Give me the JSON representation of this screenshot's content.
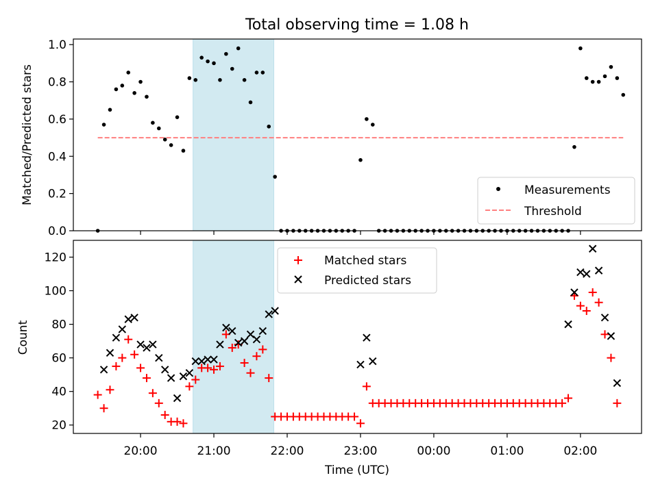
{
  "chart_data": [
    {
      "type": "scatter",
      "title": "Total observing time = 1.08 h",
      "xlabel": "",
      "ylabel": "Matched/Predicted stars",
      "ylim": [
        0,
        1.03
      ],
      "yticks": [
        "0.0",
        "0.2",
        "0.4",
        "0.6",
        "0.8",
        "1.0"
      ],
      "ytick_values": [
        0,
        0.2,
        0.4,
        0.6,
        0.8,
        1.0
      ],
      "highlight": {
        "from": "20:43",
        "to": "21:49",
        "color": "#add8e6"
      },
      "legend_position": "lower-right",
      "series": [
        {
          "name": "Measurements",
          "marker": "dot",
          "color": "#000000",
          "points": [
            [
              "19:25",
              0.0
            ],
            [
              "19:30",
              0.57
            ],
            [
              "19:35",
              0.65
            ],
            [
              "19:40",
              0.76
            ],
            [
              "19:45",
              0.78
            ],
            [
              "19:50",
              0.85
            ],
            [
              "19:55",
              0.74
            ],
            [
              "20:00",
              0.8
            ],
            [
              "20:05",
              0.72
            ],
            [
              "20:10",
              0.58
            ],
            [
              "20:15",
              0.55
            ],
            [
              "20:20",
              0.49
            ],
            [
              "20:25",
              0.46
            ],
            [
              "20:30",
              0.61
            ],
            [
              "20:35",
              0.43
            ],
            [
              "20:40",
              0.82
            ],
            [
              "20:45",
              0.81
            ],
            [
              "20:50",
              0.93
            ],
            [
              "20:55",
              0.91
            ],
            [
              "21:00",
              0.9
            ],
            [
              "21:05",
              0.81
            ],
            [
              "21:10",
              0.95
            ],
            [
              "21:15",
              0.87
            ],
            [
              "21:20",
              0.98
            ],
            [
              "21:25",
              0.81
            ],
            [
              "21:30",
              0.69
            ],
            [
              "21:35",
              0.85
            ],
            [
              "21:40",
              0.85
            ],
            [
              "21:45",
              0.56
            ],
            [
              "21:50",
              0.29
            ],
            [
              "21:55",
              0.0
            ],
            [
              "22:00",
              0.0
            ],
            [
              "22:05",
              0.0
            ],
            [
              "22:10",
              0.0
            ],
            [
              "22:15",
              0.0
            ],
            [
              "22:20",
              0.0
            ],
            [
              "22:25",
              0.0
            ],
            [
              "22:30",
              0.0
            ],
            [
              "22:35",
              0.0
            ],
            [
              "22:40",
              0.0
            ],
            [
              "22:45",
              0.0
            ],
            [
              "22:50",
              0.0
            ],
            [
              "22:55",
              0.0
            ],
            [
              "23:00",
              0.38
            ],
            [
              "23:05",
              0.6
            ],
            [
              "23:10",
              0.57
            ],
            [
              "23:15",
              0.0
            ],
            [
              "23:20",
              0.0
            ],
            [
              "23:25",
              0.0
            ],
            [
              "23:30",
              0.0
            ],
            [
              "23:35",
              0.0
            ],
            [
              "23:40",
              0.0
            ],
            [
              "23:45",
              0.0
            ],
            [
              "23:50",
              0.0
            ],
            [
              "23:55",
              0.0
            ],
            [
              "00:00",
              0.0
            ],
            [
              "00:05",
              0.0
            ],
            [
              "00:10",
              0.0
            ],
            [
              "00:15",
              0.0
            ],
            [
              "00:20",
              0.0
            ],
            [
              "00:25",
              0.0
            ],
            [
              "00:30",
              0.0
            ],
            [
              "00:35",
              0.0
            ],
            [
              "00:40",
              0.0
            ],
            [
              "00:45",
              0.0
            ],
            [
              "00:50",
              0.0
            ],
            [
              "00:55",
              0.0
            ],
            [
              "01:00",
              0.0
            ],
            [
              "01:05",
              0.0
            ],
            [
              "01:10",
              0.0
            ],
            [
              "01:15",
              0.0
            ],
            [
              "01:20",
              0.0
            ],
            [
              "01:25",
              0.0
            ],
            [
              "01:30",
              0.0
            ],
            [
              "01:35",
              0.0
            ],
            [
              "01:40",
              0.0
            ],
            [
              "01:45",
              0.0
            ],
            [
              "01:50",
              0.0
            ],
            [
              "01:55",
              0.45
            ],
            [
              "02:00",
              0.98
            ],
            [
              "02:05",
              0.82
            ],
            [
              "02:10",
              0.8
            ],
            [
              "02:15",
              0.8
            ],
            [
              "02:20",
              0.83
            ],
            [
              "02:25",
              0.88
            ],
            [
              "02:30",
              0.82
            ],
            [
              "02:35",
              0.73
            ]
          ]
        },
        {
          "name": "Threshold",
          "marker": "dashed-line",
          "color": "#ff7f7f",
          "points": [
            [
              "19:25",
              0.5
            ],
            [
              "02:35",
              0.5
            ]
          ]
        }
      ]
    },
    {
      "type": "scatter",
      "title": "",
      "xlabel": "Time (UTC)",
      "ylabel": "Count",
      "ylim": [
        15,
        130
      ],
      "yticks": [
        "20",
        "40",
        "60",
        "80",
        "100",
        "120"
      ],
      "ytick_values": [
        20,
        40,
        60,
        80,
        100,
        120
      ],
      "xlim": [
        "19:05",
        "02:50"
      ],
      "xticks": [
        "20:00",
        "21:00",
        "22:00",
        "23:00",
        "00:00",
        "01:00",
        "02:00"
      ],
      "highlight": {
        "from": "20:43",
        "to": "21:49",
        "color": "#add8e6"
      },
      "legend_position": "upper-center",
      "series": [
        {
          "name": "Matched stars",
          "marker": "plus",
          "color": "#ff0000",
          "points": [
            [
              "19:25",
              38
            ],
            [
              "19:30",
              30
            ],
            [
              "19:35",
              41
            ],
            [
              "19:40",
              55
            ],
            [
              "19:45",
              60
            ],
            [
              "19:50",
              71
            ],
            [
              "19:55",
              62
            ],
            [
              "20:00",
              54
            ],
            [
              "20:05",
              48
            ],
            [
              "20:10",
              39
            ],
            [
              "20:15",
              33
            ],
            [
              "20:20",
              26
            ],
            [
              "20:25",
              22
            ],
            [
              "20:30",
              22
            ],
            [
              "20:35",
              21
            ],
            [
              "20:40",
              43
            ],
            [
              "20:45",
              47
            ],
            [
              "20:50",
              54
            ],
            [
              "20:55",
              54
            ],
            [
              "21:00",
              53
            ],
            [
              "21:05",
              55
            ],
            [
              "21:10",
              74
            ],
            [
              "21:15",
              66
            ],
            [
              "21:20",
              68
            ],
            [
              "21:25",
              57
            ],
            [
              "21:30",
              51
            ],
            [
              "21:35",
              61
            ],
            [
              "21:40",
              65
            ],
            [
              "21:45",
              48
            ],
            [
              "21:50",
              25
            ],
            [
              "21:55",
              25
            ],
            [
              "22:00",
              25
            ],
            [
              "22:05",
              25
            ],
            [
              "22:10",
              25
            ],
            [
              "22:15",
              25
            ],
            [
              "22:20",
              25
            ],
            [
              "22:25",
              25
            ],
            [
              "22:30",
              25
            ],
            [
              "22:35",
              25
            ],
            [
              "22:40",
              25
            ],
            [
              "22:45",
              25
            ],
            [
              "22:50",
              25
            ],
            [
              "22:55",
              25
            ],
            [
              "23:00",
              21
            ],
            [
              "23:05",
              43
            ],
            [
              "23:10",
              33
            ],
            [
              "23:15",
              33
            ],
            [
              "23:20",
              33
            ],
            [
              "23:25",
              33
            ],
            [
              "23:30",
              33
            ],
            [
              "23:35",
              33
            ],
            [
              "23:40",
              33
            ],
            [
              "23:45",
              33
            ],
            [
              "23:50",
              33
            ],
            [
              "23:55",
              33
            ],
            [
              "00:00",
              33
            ],
            [
              "00:05",
              33
            ],
            [
              "00:10",
              33
            ],
            [
              "00:15",
              33
            ],
            [
              "00:20",
              33
            ],
            [
              "00:25",
              33
            ],
            [
              "00:30",
              33
            ],
            [
              "00:35",
              33
            ],
            [
              "00:40",
              33
            ],
            [
              "00:45",
              33
            ],
            [
              "00:50",
              33
            ],
            [
              "00:55",
              33
            ],
            [
              "01:00",
              33
            ],
            [
              "01:05",
              33
            ],
            [
              "01:10",
              33
            ],
            [
              "01:15",
              33
            ],
            [
              "01:20",
              33
            ],
            [
              "01:25",
              33
            ],
            [
              "01:30",
              33
            ],
            [
              "01:35",
              33
            ],
            [
              "01:40",
              33
            ],
            [
              "01:45",
              33
            ],
            [
              "01:50",
              36
            ],
            [
              "01:55",
              97
            ],
            [
              "02:00",
              91
            ],
            [
              "02:05",
              88
            ],
            [
              "02:10",
              99
            ],
            [
              "02:15",
              93
            ],
            [
              "02:20",
              74
            ],
            [
              "02:25",
              60
            ],
            [
              "02:30",
              33
            ]
          ]
        },
        {
          "name": "Predicted stars",
          "marker": "x",
          "color": "#000000",
          "points": [
            [
              "19:30",
              53
            ],
            [
              "19:35",
              63
            ],
            [
              "19:40",
              72
            ],
            [
              "19:45",
              77
            ],
            [
              "19:50",
              83
            ],
            [
              "19:55",
              84
            ],
            [
              "20:00",
              68
            ],
            [
              "20:05",
              66
            ],
            [
              "20:10",
              68
            ],
            [
              "20:15",
              60
            ],
            [
              "20:20",
              53
            ],
            [
              "20:25",
              48
            ],
            [
              "20:30",
              36
            ],
            [
              "20:35",
              49
            ],
            [
              "20:40",
              51
            ],
            [
              "20:45",
              58
            ],
            [
              "20:50",
              58
            ],
            [
              "20:55",
              59
            ],
            [
              "21:00",
              59
            ],
            [
              "21:05",
              68
            ],
            [
              "21:10",
              78
            ],
            [
              "21:15",
              76
            ],
            [
              "21:20",
              69
            ],
            [
              "21:25",
              70
            ],
            [
              "21:30",
              74
            ],
            [
              "21:35",
              71
            ],
            [
              "21:40",
              76
            ],
            [
              "21:45",
              86
            ],
            [
              "21:50",
              88
            ],
            [
              "23:00",
              56
            ],
            [
              "23:05",
              72
            ],
            [
              "23:10",
              58
            ],
            [
              "01:50",
              80
            ],
            [
              "01:55",
              99
            ],
            [
              "02:00",
              111
            ],
            [
              "02:05",
              110
            ],
            [
              "02:10",
              125
            ],
            [
              "02:15",
              112
            ],
            [
              "02:20",
              84
            ],
            [
              "02:25",
              73
            ],
            [
              "02:30",
              45
            ]
          ]
        }
      ]
    }
  ]
}
